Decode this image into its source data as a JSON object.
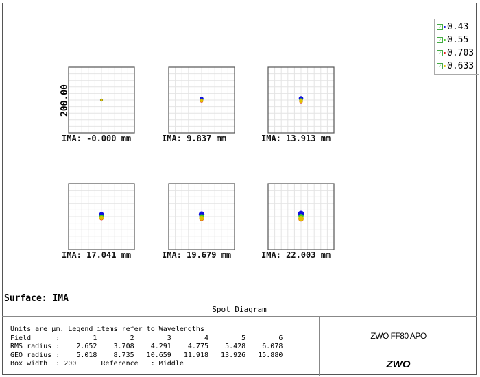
{
  "chart_data": {
    "type": "scatter",
    "title": "Spot Diagram",
    "ylabel": "200.00",
    "box_width_um": 200,
    "grid": true,
    "legend_position": "top-right",
    "legend": [
      {
        "label": "0.43",
        "color": "#1010e0"
      },
      {
        "label": "0.55",
        "color": "#40d020"
      },
      {
        "label": "0.703",
        "color": "#e01010"
      },
      {
        "label": "0.633",
        "color": "#e0c000"
      }
    ],
    "fields": [
      {
        "label": "IMA: -0.000 mm",
        "spots": [
          {
            "w": 0,
            "dy": 0,
            "r": 2.7
          },
          {
            "w": 1,
            "dy": 0,
            "r": 2.7
          },
          {
            "w": 2,
            "dy": 0,
            "r": 2.2
          },
          {
            "w": 3,
            "dy": 0,
            "r": 1.8
          }
        ]
      },
      {
        "label": "IMA: 9.837 mm",
        "spots": [
          {
            "w": 0,
            "dy": -2,
            "r": 3.7
          },
          {
            "w": 1,
            "dy": 0,
            "r": 3
          },
          {
            "w": 2,
            "dy": 1.5,
            "r": 3
          },
          {
            "w": 3,
            "dy": 1,
            "r": 3
          }
        ]
      },
      {
        "label": "IMA: 13.913 mm",
        "spots": [
          {
            "w": 0,
            "dy": -2.5,
            "r": 4.3
          },
          {
            "w": 1,
            "dy": 0,
            "r": 3.5
          },
          {
            "w": 2,
            "dy": 2,
            "r": 3.5
          },
          {
            "w": 3,
            "dy": 1.5,
            "r": 3.5
          }
        ]
      },
      {
        "label": "IMA: 17.041 mm",
        "spots": [
          {
            "w": 0,
            "dy": -3,
            "r": 4.8
          },
          {
            "w": 1,
            "dy": 0,
            "r": 4
          },
          {
            "w": 2,
            "dy": 2.5,
            "r": 4
          },
          {
            "w": 3,
            "dy": 2,
            "r": 4
          }
        ]
      },
      {
        "label": "IMA: 19.679 mm",
        "spots": [
          {
            "w": 0,
            "dy": -3.5,
            "r": 5.4
          },
          {
            "w": 1,
            "dy": 0,
            "r": 4.5
          },
          {
            "w": 2,
            "dy": 3,
            "r": 4.5
          },
          {
            "w": 3,
            "dy": 2.5,
            "r": 4.5
          }
        ]
      },
      {
        "label": "IMA: 22.003 mm",
        "spots": [
          {
            "w": 0,
            "dy": -4,
            "r": 6
          },
          {
            "w": 1,
            "dy": 0,
            "r": 5
          },
          {
            "w": 2,
            "dy": 3.5,
            "r": 5
          },
          {
            "w": 3,
            "dy": 3,
            "r": 5
          }
        ]
      }
    ]
  },
  "surface": "Surface: IMA",
  "table": {
    "title": "Spot Diagram",
    "rows": [
      "Units are µm. Legend items refer to Wavelengths",
      "Field      :        1        2        3        4        5        6",
      "RMS radius :    2.652    3.708    4.291    4.775    5.428    6.078",
      "GEO radius :    5.018    8.735   10.659   11.918   13.926   15.880",
      "Box width  : 200      Reference   : Middle"
    ],
    "product": "ZWO FF80 APO",
    "logo": "ZWO"
  }
}
